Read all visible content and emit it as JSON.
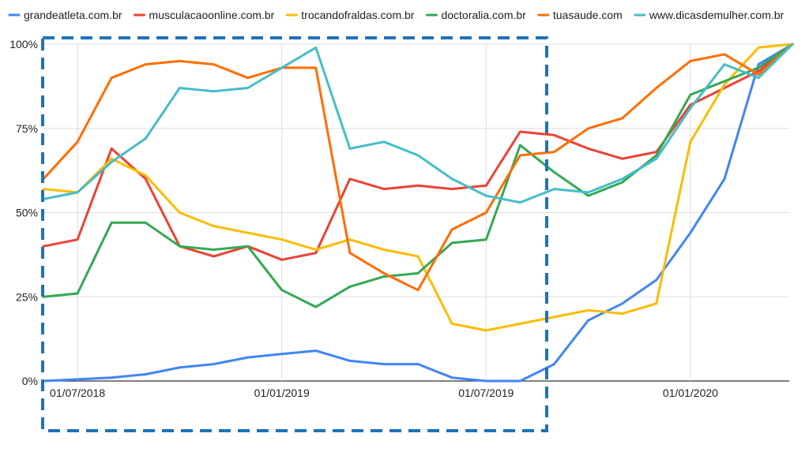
{
  "chart_data": {
    "type": "line",
    "title": "",
    "xlabel": "",
    "ylabel": "",
    "ylim": [
      0,
      100
    ],
    "y_ticks": [
      "0%",
      "25%",
      "50%",
      "75%",
      "100%"
    ],
    "x_tick_labels": [
      "01/07/2018",
      "01/01/2019",
      "01/07/2019",
      "01/01/2020"
    ],
    "grid": true,
    "legend_position": "top",
    "x": [
      "2018-06-10",
      "2018-07-01",
      "2018-08-01",
      "2018-09-01",
      "2018-10-01",
      "2018-11-01",
      "2018-12-01",
      "2019-01-01",
      "2019-02-01",
      "2019-03-01",
      "2019-04-01",
      "2019-05-01",
      "2019-06-01",
      "2019-07-01",
      "2019-08-01",
      "2019-09-01",
      "2019-10-01",
      "2019-11-01",
      "2019-12-01",
      "2020-01-01",
      "2020-02-01",
      "2020-03-01",
      "2020-04-01"
    ],
    "series": [
      {
        "name": "grandeatleta.com.br",
        "color": "#4285f4",
        "values": [
          0,
          0.5,
          1,
          2,
          4,
          5,
          7,
          8,
          9,
          6,
          5,
          5,
          1,
          0,
          0,
          5,
          18,
          23,
          30,
          44,
          60,
          94,
          100
        ]
      },
      {
        "name": "musculacaoonline.com.br",
        "color": "#ea4335",
        "values": [
          40,
          42,
          69,
          60,
          40,
          37,
          40,
          36,
          38,
          60,
          57,
          58,
          57,
          58,
          74,
          73,
          69,
          66,
          68,
          82,
          87,
          92,
          100
        ]
      },
      {
        "name": "trocandofraldas.com.br",
        "color": "#fbbc04",
        "values": [
          57,
          56,
          66,
          61,
          50,
          46,
          44,
          42,
          39,
          42,
          39,
          37,
          17,
          15,
          17,
          19,
          21,
          20,
          23,
          71,
          88,
          99,
          100
        ]
      },
      {
        "name": "doctoralia.com.br",
        "color": "#34a853",
        "values": [
          25,
          26,
          47,
          47,
          40,
          39,
          40,
          27,
          22,
          28,
          31,
          32,
          41,
          42,
          70,
          62,
          55,
          59,
          67,
          85,
          89,
          93,
          100
        ]
      },
      {
        "name": "tuasaude.com",
        "color": "#ff6d01",
        "values": [
          60,
          71,
          90,
          94,
          95,
          94,
          90,
          93,
          93,
          38,
          32,
          27,
          45,
          50,
          67,
          68,
          75,
          78,
          87,
          95,
          97,
          91,
          100
        ]
      },
      {
        "name": "www.dicasdemulher.com.br",
        "color": "#46bdc6",
        "values": [
          54,
          56,
          65,
          72,
          87,
          86,
          87,
          93,
          99,
          69,
          71,
          67,
          60,
          55,
          53,
          57,
          56,
          60,
          66,
          81,
          94,
          90,
          100
        ]
      }
    ]
  }
}
